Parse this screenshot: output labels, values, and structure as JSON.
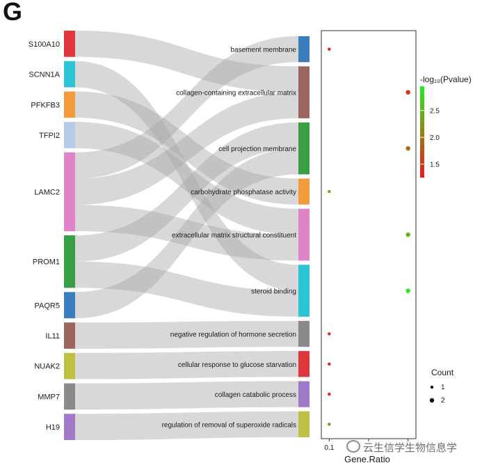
{
  "panel_label": "G",
  "watermark": "云生信学生物信息学",
  "chart_data": {
    "type": "sankey-dotplot",
    "genes": [
      {
        "name": "S100A10",
        "color": "#e0363c"
      },
      {
        "name": "SCNN1A",
        "color": "#2bc4d6"
      },
      {
        "name": "PFKFB3",
        "color": "#f39a3a"
      },
      {
        "name": "TFPI2",
        "color": "#b5cbea"
      },
      {
        "name": "LAMC2",
        "color": "#e283c9"
      },
      {
        "name": "PROM1",
        "color": "#3a9e45"
      },
      {
        "name": "PAQR5",
        "color": "#3a7ec0"
      },
      {
        "name": "IL11",
        "color": "#9a665d"
      },
      {
        "name": "NUAK2",
        "color": "#bfc043"
      },
      {
        "name": "MMP7",
        "color": "#8a8a8a"
      },
      {
        "name": "H19",
        "color": "#a07ac9"
      }
    ],
    "terms": [
      {
        "name": "basement membrane",
        "color": "#3a7ec0",
        "gene_ratio": 0.1,
        "neglog10p": 1.3,
        "count": 1
      },
      {
        "name": "collagen-containing extracellular matrix",
        "color": "#9a665d",
        "gene_ratio": 0.2,
        "neglog10p": 1.4,
        "count": 2
      },
      {
        "name": "cell projection membrane",
        "color": "#3a9e45",
        "gene_ratio": 0.2,
        "neglog10p": 1.9,
        "count": 2
      },
      {
        "name": "carbohydrate phosphatase activity",
        "color": "#f39a3a",
        "gene_ratio": 0.1,
        "neglog10p": 2.4,
        "count": 1
      },
      {
        "name": "extracellular matrix structural constituent",
        "color": "#e283c9",
        "gene_ratio": 0.2,
        "neglog10p": 2.5,
        "count": 2
      },
      {
        "name": "steroid binding",
        "color": "#2bc4d6",
        "gene_ratio": 0.2,
        "neglog10p": 2.9,
        "count": 2
      },
      {
        "name": "negative regulation of hormone secretion",
        "color": "#8a8a8a",
        "gene_ratio": 0.1,
        "neglog10p": 1.3,
        "count": 1
      },
      {
        "name": "cellular response to glucose starvation",
        "color": "#e0363c",
        "gene_ratio": 0.1,
        "neglog10p": 1.3,
        "count": 1
      },
      {
        "name": "collagen catabolic process",
        "color": "#a07ac9",
        "gene_ratio": 0.1,
        "neglog10p": 1.3,
        "count": 1
      },
      {
        "name": "regulation of removal of superoxide radicals",
        "color": "#bfc043",
        "gene_ratio": 0.1,
        "neglog10p": 2.2,
        "count": 1
      }
    ],
    "links": [
      {
        "gene": "S100A10",
        "term": "collagen-containing extracellular matrix"
      },
      {
        "gene": "SCNN1A",
        "term": "steroid binding"
      },
      {
        "gene": "PFKFB3",
        "term": "carbohydrate phosphatase activity"
      },
      {
        "gene": "TFPI2",
        "term": "extracellular matrix structural constituent"
      },
      {
        "gene": "LAMC2",
        "term": "basement membrane"
      },
      {
        "gene": "LAMC2",
        "term": "collagen-containing extracellular matrix"
      },
      {
        "gene": "LAMC2",
        "term": "extracellular matrix structural constituent"
      },
      {
        "gene": "PROM1",
        "term": "cell projection membrane"
      },
      {
        "gene": "PROM1",
        "term": "steroid binding"
      },
      {
        "gene": "PAQR5",
        "term": "cell projection membrane"
      },
      {
        "gene": "IL11",
        "term": "negative regulation of hormone secretion"
      },
      {
        "gene": "NUAK2",
        "term": "cellular response to glucose starvation"
      },
      {
        "gene": "MMP7",
        "term": "collagen catabolic process"
      },
      {
        "gene": "H19",
        "term": "regulation of removal of superoxide radicals"
      }
    ],
    "xlabel": "Gene.Ratio",
    "x_ticks": [
      "0.1"
    ],
    "xlim": [
      0.09,
      0.21
    ],
    "colorbar": {
      "title": "-log₁₀(Pvalue)",
      "range": [
        1.25,
        2.95
      ],
      "ticks": [
        "1.5",
        "2.0",
        "2.5"
      ],
      "low_color": "#e41a1c",
      "high_color": "#22ee22"
    },
    "size_legend": {
      "title": "Count",
      "levels": [
        "1",
        "2"
      ]
    }
  }
}
